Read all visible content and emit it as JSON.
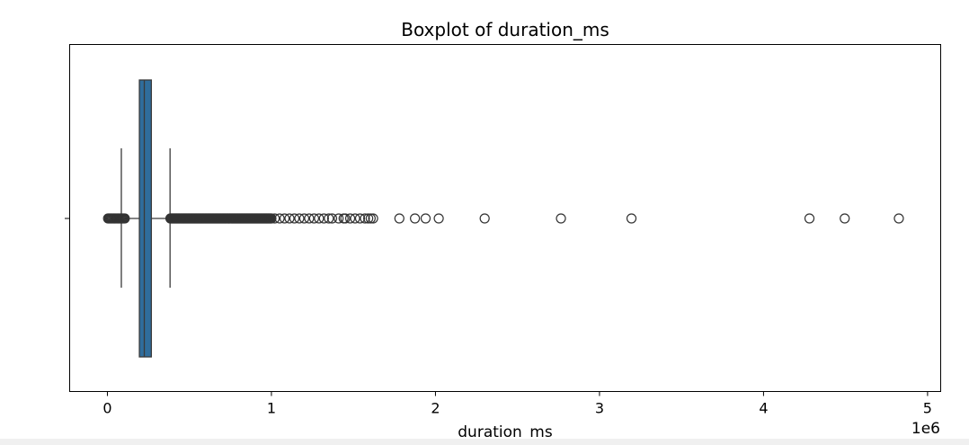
{
  "chart_data": {
    "type": "boxplot",
    "title": "Boxplot of duration_ms",
    "xlabel": "duration_ms",
    "ylabel": "",
    "xlim": [
      -230000,
      5080000
    ],
    "x_ticks": [
      0,
      1000000,
      2000000,
      3000000,
      4000000,
      5000000
    ],
    "x_tick_labels": [
      "0",
      "1",
      "2",
      "3",
      "4",
      "5"
    ],
    "offset_label": "1e6",
    "grid": false,
    "box": {
      "whisker_low": 85000,
      "q1": 195000,
      "median": 225000,
      "q3": 268000,
      "whisker_high": 382000,
      "color": "#2f6d9c",
      "edge_color": "#3a3a3a"
    },
    "outliers": {
      "low_range": [
        4000,
        110000
      ],
      "high_dense_range": [
        384000,
        1000000
      ],
      "high_scattered": [
        1020000,
        1050000,
        1080000,
        1110000,
        1140000,
        1170000,
        1200000,
        1230000,
        1260000,
        1290000,
        1320000,
        1350000,
        1370000,
        1410000,
        1440000,
        1450000,
        1480000,
        1510000,
        1540000,
        1570000,
        1590000,
        1605000,
        1620000,
        1780000,
        1875000,
        1940000,
        2020000,
        2300000,
        2765000,
        3195000,
        4280000,
        4495000,
        4825000
      ]
    }
  }
}
